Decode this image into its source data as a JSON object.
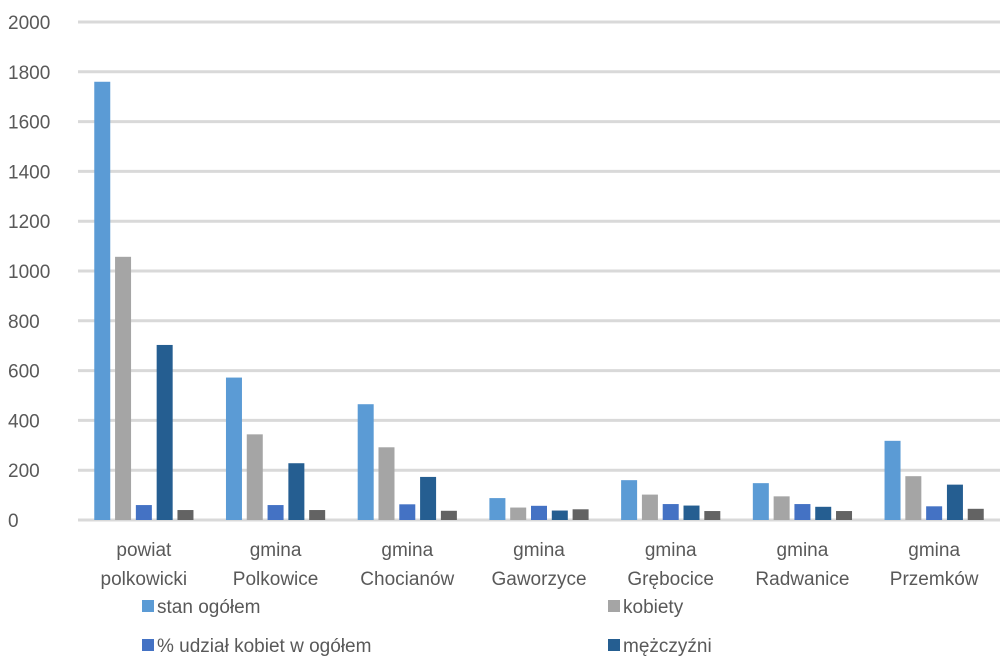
{
  "chart_data": {
    "type": "bar",
    "title": "",
    "xlabel": "",
    "ylabel": "",
    "ylim": [
      0,
      2000
    ],
    "yticks": [
      0,
      200,
      400,
      600,
      800,
      1000,
      1200,
      1400,
      1600,
      1800,
      2000
    ],
    "grid": true,
    "legend_position": "bottom",
    "categories": [
      [
        "powiat",
        "polkowicki"
      ],
      [
        "gmina",
        "Polkowice"
      ],
      [
        "gmina",
        "Chocianów"
      ],
      [
        "gmina",
        "Gaworzyce"
      ],
      [
        "gmina",
        "Grębocice"
      ],
      [
        "gmina",
        "Radwanice"
      ],
      [
        "gmina",
        "Przemków"
      ]
    ],
    "series": [
      {
        "name": "stan ogółem",
        "color": "#5B9BD5",
        "values": [
          1760,
          572,
          465,
          88,
          160,
          148,
          318
        ]
      },
      {
        "name": "kobiety",
        "color": "#A5A5A5",
        "values": [
          1057,
          344,
          292,
          50,
          102,
          95,
          176
        ]
      },
      {
        "name": "% udział kobiet w ogółem",
        "color": "#4472C4",
        "values": [
          60,
          60,
          63,
          57,
          64,
          64,
          55
        ]
      },
      {
        "name": "mężczyźni",
        "color": "#255E91",
        "values": [
          703,
          228,
          173,
          38,
          58,
          53,
          142
        ]
      },
      {
        "name": "",
        "color": "#636363",
        "values": [
          40,
          40,
          37,
          43,
          36,
          36,
          45
        ]
      }
    ]
  }
}
